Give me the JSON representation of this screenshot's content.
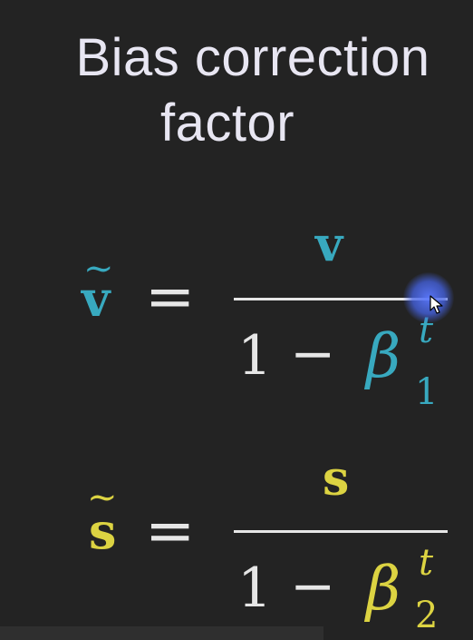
{
  "slide": {
    "title_line1": "Bias correction",
    "title_line2": "factor"
  },
  "equations": [
    {
      "lhs": "v",
      "tilde": "~",
      "equals": "=",
      "numerator": "v",
      "one": "1",
      "minus": "−",
      "beta": "β",
      "superscript": "t",
      "subscript": "1",
      "color": "#38a9bf"
    },
    {
      "lhs": "s",
      "tilde": "~",
      "equals": "=",
      "numerator": "s",
      "one": "1",
      "minus": "−",
      "beta": "β",
      "superscript": "t",
      "subscript": "2",
      "color": "#dcd342"
    }
  ],
  "icons": {
    "cursor": "mouse-pointer-icon"
  }
}
